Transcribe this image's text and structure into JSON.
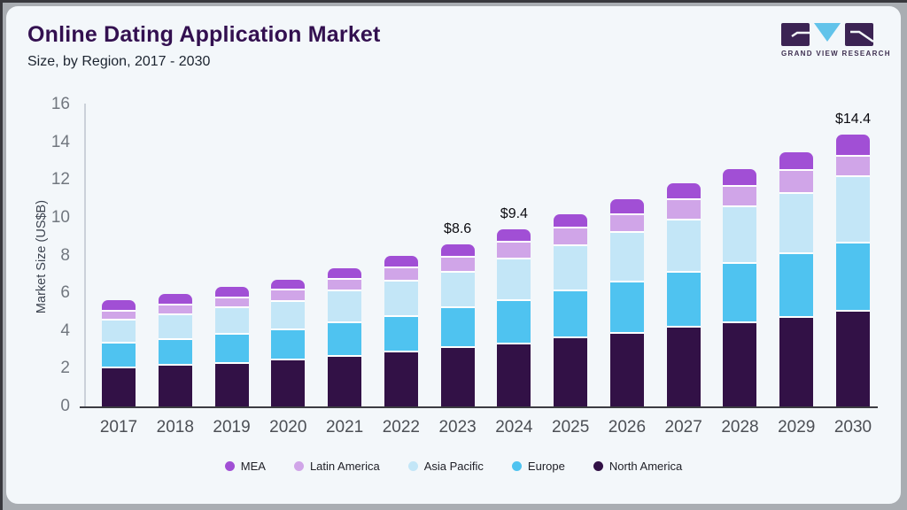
{
  "header": {
    "title": "Online Dating Application Market",
    "subtitle": "Size, by Region, 2017 - 2030"
  },
  "logo": {
    "name": "GRAND VIEW RESEARCH",
    "colors": {
      "block": "#3b2353",
      "triangle": "#62c3ea"
    }
  },
  "chart_data": {
    "type": "bar",
    "stacked": true,
    "title": "Online Dating Application Market Size, by Region, 2017 - 2030",
    "ylabel": "Market Size (US$B)",
    "xlabel": "",
    "ylim": [
      0,
      16
    ],
    "yticks": [
      0,
      2,
      4,
      6,
      8,
      10,
      12,
      14,
      16
    ],
    "grid": false,
    "legend_position": "bottom",
    "categories": [
      "2017",
      "2018",
      "2019",
      "2020",
      "2021",
      "2022",
      "2023",
      "2024",
      "2025",
      "2026",
      "2027",
      "2028",
      "2029",
      "2030"
    ],
    "series": [
      {
        "name": "North America",
        "color": "#321146",
        "values": [
          2.1,
          2.25,
          2.35,
          2.55,
          2.7,
          2.95,
          3.2,
          3.4,
          3.7,
          3.95,
          4.25,
          4.5,
          4.8,
          5.1
        ]
      },
      {
        "name": "Europe",
        "color": "#4fc3f0",
        "values": [
          1.3,
          1.35,
          1.55,
          1.6,
          1.8,
          1.9,
          2.1,
          2.3,
          2.5,
          2.7,
          2.9,
          3.15,
          3.4,
          3.6
        ]
      },
      {
        "name": "Asia Pacific",
        "color": "#c3e6f7",
        "values": [
          1.2,
          1.3,
          1.4,
          1.5,
          1.7,
          1.9,
          1.9,
          2.2,
          2.4,
          2.65,
          2.75,
          3.0,
          3.2,
          3.5
        ]
      },
      {
        "name": "Latin America",
        "color": "#d0a5e8",
        "values": [
          0.45,
          0.5,
          0.5,
          0.6,
          0.6,
          0.7,
          0.8,
          0.9,
          0.95,
          0.95,
          1.1,
          1.1,
          1.2,
          1.1
        ]
      },
      {
        "name": "MEA",
        "color": "#a14fd5",
        "values": [
          0.5,
          0.5,
          0.5,
          0.45,
          0.5,
          0.55,
          0.6,
          0.6,
          0.65,
          0.75,
          0.8,
          0.85,
          0.9,
          1.1
        ]
      }
    ],
    "totals": [
      5.55,
      5.9,
      6.3,
      6.7,
      7.3,
      8.0,
      8.6,
      9.4,
      10.2,
      11.0,
      11.8,
      12.6,
      13.5,
      14.4
    ],
    "legend_order": [
      "MEA",
      "Latin America",
      "Asia Pacific",
      "Europe",
      "North America"
    ],
    "annotations": [
      {
        "category": "2023",
        "label": "$8.6"
      },
      {
        "category": "2024",
        "label": "$9.4"
      },
      {
        "category": "2030",
        "label": "$14.4"
      }
    ]
  }
}
